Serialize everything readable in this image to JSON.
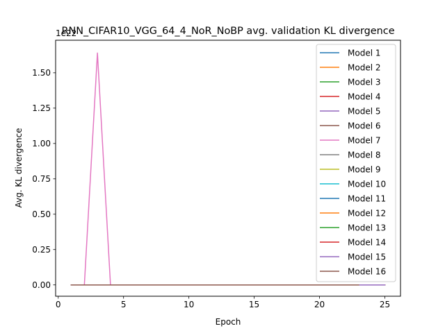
{
  "chart_data": {
    "type": "line",
    "title": "RNN_CIFAR10_VGG_64_4_NoR_NoBP avg. validation KL divergence",
    "xlabel": "Epoch",
    "ylabel": "Avg. KL divergence",
    "y_offset_text": "1e22",
    "xlim": [
      -0.2,
      26.2
    ],
    "ylim": [
      -0.08,
      1.73
    ],
    "x_ticks": [
      0,
      5,
      10,
      15,
      20,
      25
    ],
    "x_tick_labels": [
      "0",
      "5",
      "10",
      "15",
      "20",
      "25"
    ],
    "y_ticks": [
      0,
      0.25,
      0.5,
      0.75,
      1.0,
      1.25,
      1.5
    ],
    "y_tick_labels": [
      "0.00",
      "0.25",
      "0.50",
      "0.75",
      "1.00",
      "1.25",
      "1.50"
    ],
    "grid": false,
    "legend_position": "upper right",
    "series": [
      {
        "name": "Model 1",
        "color": "#1f77b4",
        "x": [
          1,
          25
        ],
        "y": [
          0,
          0
        ]
      },
      {
        "name": "Model 2",
        "color": "#ff7f0e",
        "x": [
          1,
          25
        ],
        "y": [
          0,
          0
        ]
      },
      {
        "name": "Model 3",
        "color": "#2ca02c",
        "x": [
          1,
          25
        ],
        "y": [
          0,
          0
        ]
      },
      {
        "name": "Model 4",
        "color": "#d62728",
        "x": [
          1,
          25
        ],
        "y": [
          0,
          0
        ]
      },
      {
        "name": "Model 5",
        "color": "#9467bd",
        "x": [
          1,
          25
        ],
        "y": [
          0,
          0
        ]
      },
      {
        "name": "Model 6",
        "color": "#8c564b",
        "x": [
          1,
          25
        ],
        "y": [
          0,
          0
        ]
      },
      {
        "name": "Model 7",
        "color": "#e377c2",
        "x": [
          1,
          2,
          3,
          4,
          5,
          25
        ],
        "y": [
          0,
          0,
          1.64,
          0,
          0,
          0
        ]
      },
      {
        "name": "Model 8",
        "color": "#7f7f7f",
        "x": [
          1,
          25
        ],
        "y": [
          0,
          0
        ]
      },
      {
        "name": "Model 9",
        "color": "#bcbd22",
        "x": [
          1,
          25
        ],
        "y": [
          0,
          0
        ]
      },
      {
        "name": "Model 10",
        "color": "#17becf",
        "x": [
          1,
          25
        ],
        "y": [
          0,
          0
        ]
      },
      {
        "name": "Model 11",
        "color": "#1f77b4",
        "x": [
          1,
          25
        ],
        "y": [
          0,
          0
        ]
      },
      {
        "name": "Model 12",
        "color": "#ff7f0e",
        "x": [
          1,
          25
        ],
        "y": [
          0,
          0
        ]
      },
      {
        "name": "Model 13",
        "color": "#2ca02c",
        "x": [
          1,
          25
        ],
        "y": [
          0,
          0
        ]
      },
      {
        "name": "Model 14",
        "color": "#d62728",
        "x": [
          1,
          25
        ],
        "y": [
          0,
          0
        ]
      },
      {
        "name": "Model 15",
        "color": "#9467bd",
        "x": [
          1,
          25
        ],
        "y": [
          0,
          0
        ]
      },
      {
        "name": "Model 16",
        "color": "#8c564b",
        "x": [
          1,
          23
        ],
        "y": [
          0,
          0
        ]
      }
    ]
  }
}
